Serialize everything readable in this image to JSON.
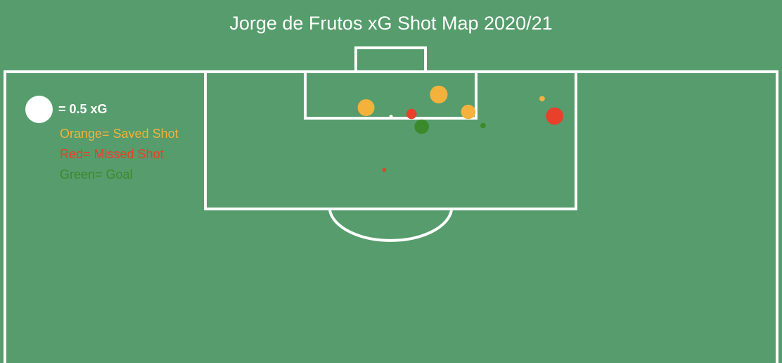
{
  "chart_data": {
    "type": "scatter",
    "title": "Jorge de Frutos xG Shot Map 2020/21",
    "size_key": {
      "label": "= 0.5 xG",
      "xg": 0.5
    },
    "legend": [
      {
        "label": "Orange= Saved Shot",
        "outcome": "saved",
        "color": "#f4b23c"
      },
      {
        "label": "Red= Missed Shot",
        "outcome": "missed",
        "color": "#e8402a"
      },
      {
        "label": "Green= Goal",
        "outcome": "goal",
        "color": "#3a8a2b"
      }
    ],
    "x_axis": "pitch width (m), left touchline = 0",
    "y_axis": "distance from goal line (m)",
    "xlim": [
      0,
      68
    ],
    "ylim": [
      0,
      26
    ],
    "shots": [
      {
        "x": 38.2,
        "y": 4.3,
        "xg": 0.21,
        "outcome": "saved"
      },
      {
        "x": 31.8,
        "y": 6.8,
        "xg": 0.19,
        "outcome": "saved"
      },
      {
        "x": 40.8,
        "y": 7.6,
        "xg": 0.14,
        "outcome": "saved"
      },
      {
        "x": 47.3,
        "y": 5.1,
        "xg": 0.02,
        "outcome": "saved"
      },
      {
        "x": 35.8,
        "y": 8.0,
        "xg": 0.07,
        "outcome": "missed"
      },
      {
        "x": 48.4,
        "y": 8.4,
        "xg": 0.2,
        "outcome": "missed"
      },
      {
        "x": 33.4,
        "y": 18.6,
        "xg": 0.01,
        "outcome": "missed"
      },
      {
        "x": 36.7,
        "y": 10.4,
        "xg": 0.14,
        "outcome": "goal"
      },
      {
        "x": 42.1,
        "y": 10.2,
        "xg": 0.02,
        "outcome": "goal"
      },
      {
        "x": 34.0,
        "y": 8.5,
        "xg": 0.001,
        "outcome": "unknown",
        "color": "#ffffff"
      }
    ],
    "grid": false
  }
}
